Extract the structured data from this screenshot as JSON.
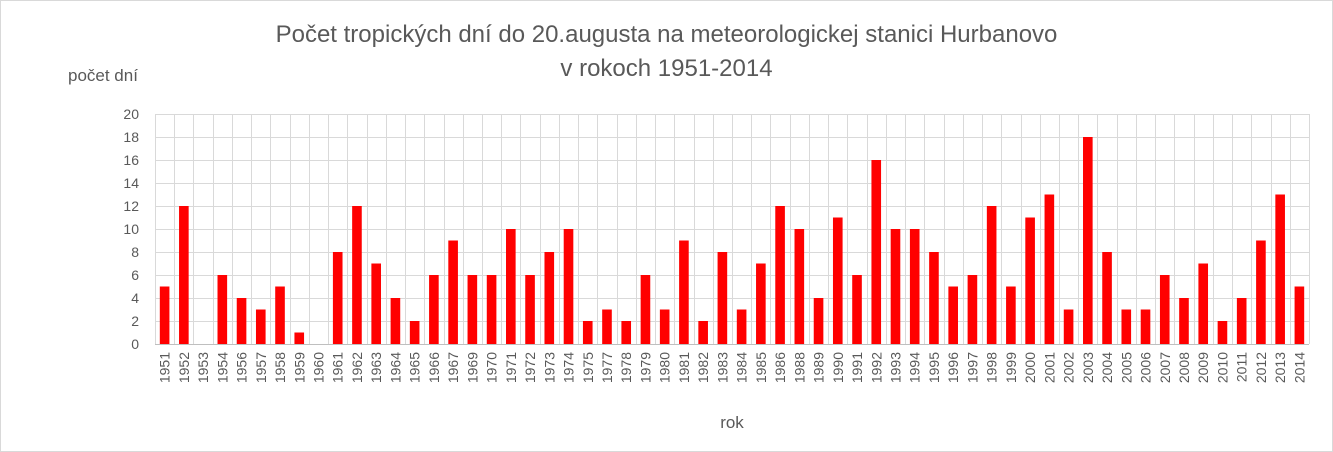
{
  "chart_data": {
    "type": "bar",
    "title_line1": "Počet tropických dní do 20.augusta na meteorologickej stanici Hurbanovo",
    "title_line2": "v rokoch 1951-2014",
    "ylabel": "počet dní",
    "xlabel": "rok",
    "ylim": [
      0,
      20
    ],
    "yticks": [
      0,
      2,
      4,
      6,
      8,
      10,
      12,
      14,
      16,
      18,
      20
    ],
    "grid": true,
    "bar_color": "#ff0000",
    "categories": [
      "1951",
      "1952",
      "1953",
      "1954",
      "1956",
      "1957",
      "1958",
      "1959",
      "1960",
      "1961",
      "1962",
      "1963",
      "1964",
      "1965",
      "1966",
      "1967",
      "1969",
      "1970",
      "1971",
      "1972",
      "1973",
      "1974",
      "1975",
      "1977",
      "1978",
      "1979",
      "1980",
      "1981",
      "1982",
      "1983",
      "1984",
      "1985",
      "1986",
      "1988",
      "1989",
      "1990",
      "1991",
      "1992",
      "1993",
      "1994",
      "1995",
      "1996",
      "1997",
      "1998",
      "1999",
      "2000",
      "2001",
      "2002",
      "2003",
      "2004",
      "2005",
      "2006",
      "2007",
      "2008",
      "2009",
      "2010",
      "2011",
      "2012",
      "2013",
      "2014"
    ],
    "values": [
      5,
      12,
      0,
      6,
      4,
      3,
      5,
      1,
      0,
      8,
      12,
      7,
      4,
      2,
      6,
      9,
      6,
      6,
      10,
      6,
      8,
      10,
      2,
      3,
      2,
      6,
      3,
      9,
      2,
      8,
      3,
      7,
      12,
      10,
      4,
      11,
      6,
      16,
      10,
      10,
      8,
      5,
      6,
      12,
      5,
      11,
      13,
      3,
      18,
      8,
      3,
      3,
      6,
      4,
      7,
      2,
      4,
      9,
      13,
      5
    ]
  }
}
